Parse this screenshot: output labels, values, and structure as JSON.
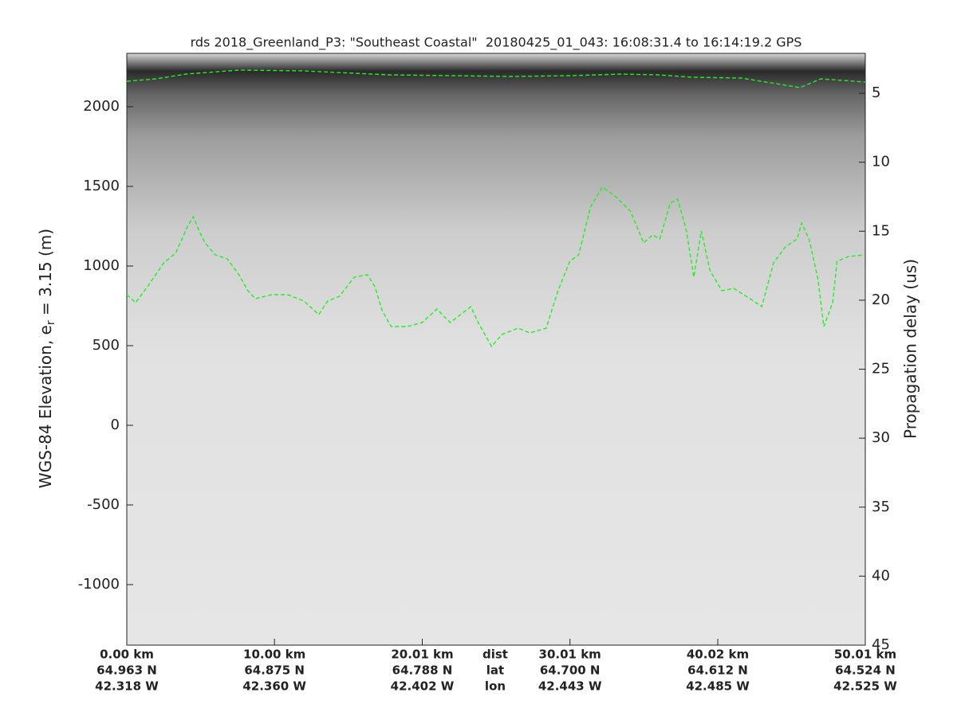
{
  "chart_data": {
    "type": "line",
    "title": "rds 2018_Greenland_P3: \"Southeast Coastal\"  20180425_01_043: 16:08:31.4 to 16:14:19.2 GPS",
    "ylabel": {
      "text": "WGS-84 Elevation, e",
      "subscript": "r",
      "after": " = 3.15 (m)"
    },
    "y2label": "Propagation delay (us)",
    "xlim": [
      0,
      50.01
    ],
    "ylim": [
      -1380,
      2335
    ],
    "y2lim": [
      45,
      2.11
    ],
    "xticks": [
      {
        "value": 0,
        "label": "0.00 km"
      },
      {
        "value": 10.0,
        "label": "10.00 km"
      },
      {
        "value": 20.01,
        "label": "20.01 km"
      },
      {
        "value": 30.01,
        "label": "30.01 km"
      },
      {
        "value": 40.02,
        "label": "40.02 km"
      },
      {
        "value": 50.01,
        "label": "50.01 km"
      }
    ],
    "x_lat_labels": [
      "64.963 N",
      "64.875 N",
      "64.788 N",
      "64.700 N",
      "64.612 N",
      "64.524 N"
    ],
    "x_lon_labels": [
      "42.318 W",
      "42.360 W",
      "42.402 W",
      "42.443 W",
      "42.485 W",
      "42.525 W"
    ],
    "x_row_labels": [
      "dist",
      "lat",
      "lon"
    ],
    "yticks": [
      -1000,
      -500,
      0,
      500,
      1000,
      1500,
      2000
    ],
    "y2ticks": [
      5,
      10,
      15,
      20,
      25,
      30,
      35,
      40,
      45
    ],
    "series": [
      {
        "color": "#22ee22",
        "dash": true,
        "x": [
          0,
          2,
          4,
          7.6,
          12,
          17.8,
          22,
          26,
          30,
          33.5,
          36,
          38.3,
          41.6,
          44.3,
          45.6,
          47,
          48.5,
          50
        ],
        "values": [
          2160,
          2175,
          2205,
          2230,
          2225,
          2200,
          2195,
          2190,
          2195,
          2205,
          2200,
          2185,
          2180,
          2140,
          2120,
          2175,
          2165,
          2155
        ]
      },
      {
        "color": "#22ee22",
        "dash": true,
        "x": [
          0,
          0.6,
          1.4,
          2.5,
          3.3,
          4.1,
          4.5,
          4.9,
          5.3,
          6.0,
          6.8,
          7.6,
          8.2,
          8.7,
          9.8,
          10.9,
          12.0,
          13.0,
          13.6,
          14.4,
          15.4,
          16.3,
          16.8,
          17.3,
          17.9,
          19.0,
          20.0,
          21.0,
          21.9,
          23.3,
          23.8,
          24.7,
          25.4,
          26.5,
          27.3,
          28.4,
          29.2,
          30.0,
          30.6,
          31.4,
          32.2,
          33.0,
          34.1,
          35.0,
          35.6,
          36.1,
          36.8,
          37.3,
          37.9,
          38.4,
          38.9,
          39.5,
          40.3,
          41.1,
          42.2,
          43.0,
          43.8,
          44.6,
          45.4,
          45.7,
          46.2,
          46.8,
          47.2,
          47.8,
          48.1,
          48.9,
          50.0
        ],
        "values": [
          820,
          770,
          870,
          1020,
          1080,
          1245,
          1310,
          1220,
          1145,
          1070,
          1045,
          945,
          845,
          795,
          820,
          820,
          780,
          695,
          780,
          810,
          930,
          945,
          870,
          720,
          620,
          620,
          645,
          730,
          645,
          745,
          645,
          495,
          570,
          610,
          580,
          610,
          845,
          1030,
          1070,
          1370,
          1495,
          1445,
          1345,
          1145,
          1195,
          1170,
          1395,
          1420,
          1220,
          930,
          1220,
          970,
          845,
          860,
          795,
          745,
          1020,
          1120,
          1170,
          1270,
          1170,
          920,
          620,
          770,
          1030,
          1060,
          1070
        ]
      }
    ]
  }
}
